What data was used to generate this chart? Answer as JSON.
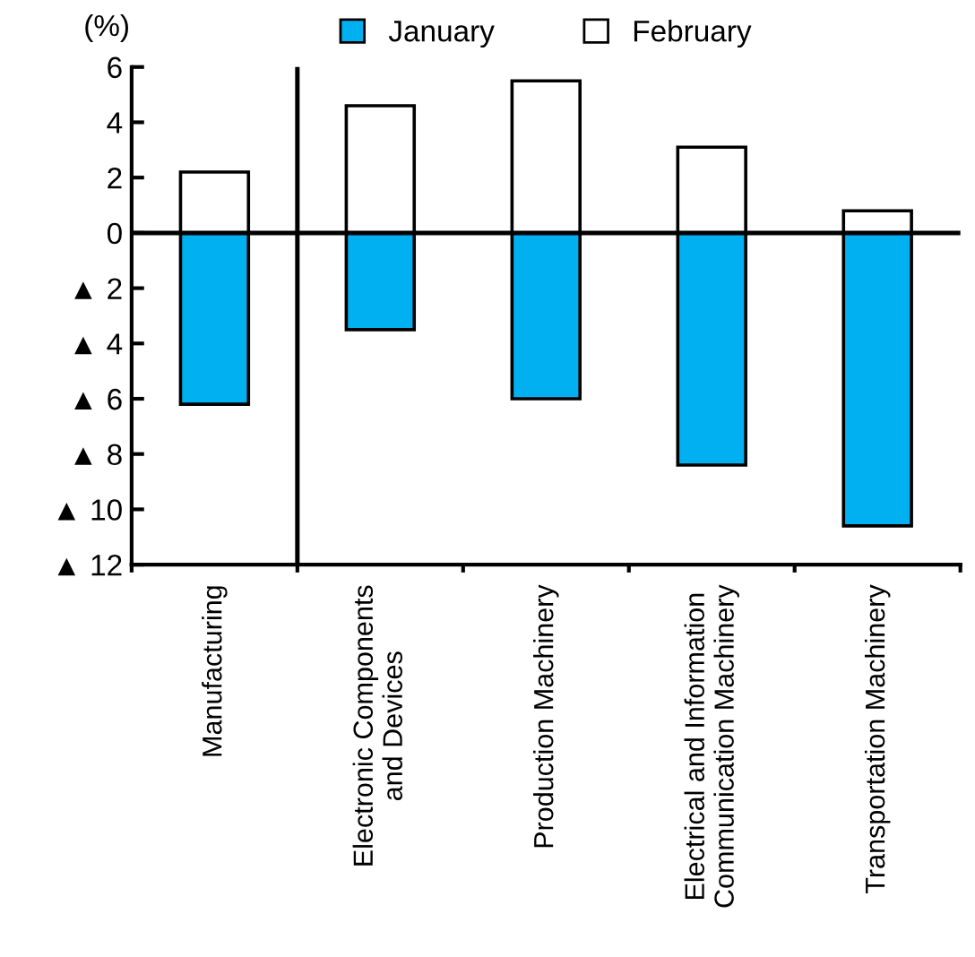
{
  "chart_data": {
    "type": "bar",
    "stacked": true,
    "ylabel": "(%)",
    "categories": [
      "Manufacturing",
      "Electronic Components\nand Devices",
      "Production Machinery",
      "Electrical and Information\nCommunication Machinery",
      "Transportation Machinery"
    ],
    "series": [
      {
        "name": "January",
        "color": "#00b0f0",
        "values": [
          -6.2,
          -3.5,
          -6.0,
          -8.4,
          -10.6
        ]
      },
      {
        "name": "February",
        "color": "#ffffff",
        "values": [
          2.2,
          4.6,
          5.5,
          3.1,
          0.8
        ]
      }
    ],
    "ylim": [
      -12,
      6
    ],
    "yticks": [
      6,
      4,
      2,
      0,
      {
        "value": -2,
        "label": "▲ 2"
      },
      {
        "value": -4,
        "label": "▲ 4"
      },
      {
        "value": -6,
        "label": "▲ 6"
      },
      {
        "value": -8,
        "label": "▲ 8"
      },
      {
        "value": -10,
        "label": "▲ 10"
      },
      {
        "value": -12,
        "label": "▲ 12"
      }
    ],
    "ref_lines": [
      {
        "axis": "y",
        "value": 0,
        "color": "#000000"
      }
    ],
    "legend": "top",
    "grid": false
  }
}
